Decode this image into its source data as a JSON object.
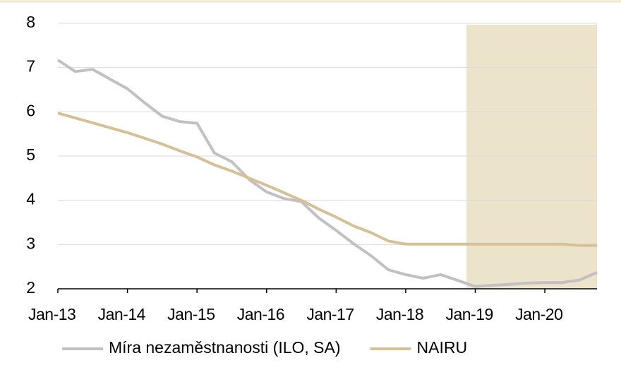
{
  "chart_data": {
    "type": "line",
    "categories": [
      "Jan-13",
      null,
      null,
      null,
      "Jan-14",
      null,
      null,
      null,
      "Jan-15",
      null,
      null,
      null,
      "Jan-16",
      null,
      null,
      null,
      "Jan-17",
      null,
      null,
      null,
      "Jan-18",
      null,
      null,
      null,
      "Jan-19",
      null,
      null,
      null,
      "Jan-20",
      null,
      null,
      null
    ],
    "series": [
      {
        "name": "Míra nezaměstnanosti (ILO, SA)",
        "color": "#c3bfc3",
        "values": [
          7.17,
          6.91,
          6.96,
          6.74,
          6.52,
          6.2,
          5.9,
          5.78,
          5.74,
          5.07,
          4.87,
          4.47,
          4.19,
          4.04,
          3.97,
          3.6,
          3.32,
          3.02,
          2.75,
          2.43,
          2.32,
          2.24,
          2.32,
          2.19,
          2.05,
          2.08,
          2.1,
          2.13,
          2.14,
          2.14,
          2.2,
          2.37
        ]
      },
      {
        "name": "NAIRU",
        "color": "#d6c096",
        "values": [
          5.97,
          5.86,
          5.75,
          5.64,
          5.53,
          5.4,
          5.27,
          5.12,
          4.98,
          4.8,
          4.66,
          4.5,
          4.34,
          4.17,
          4.0,
          3.8,
          3.62,
          3.42,
          3.27,
          3.08,
          3.01,
          3.01,
          3.01,
          3.01,
          3.01,
          3.01,
          3.01,
          3.01,
          3.01,
          3.01,
          2.98,
          2.98
        ]
      }
    ],
    "ylim": [
      2,
      8
    ],
    "yticks": [
      2,
      3,
      4,
      5,
      6,
      7,
      8
    ],
    "grid": true,
    "shade": {
      "from": 23,
      "to": 31,
      "color": "#ece3cb"
    },
    "legend": "bottom"
  }
}
